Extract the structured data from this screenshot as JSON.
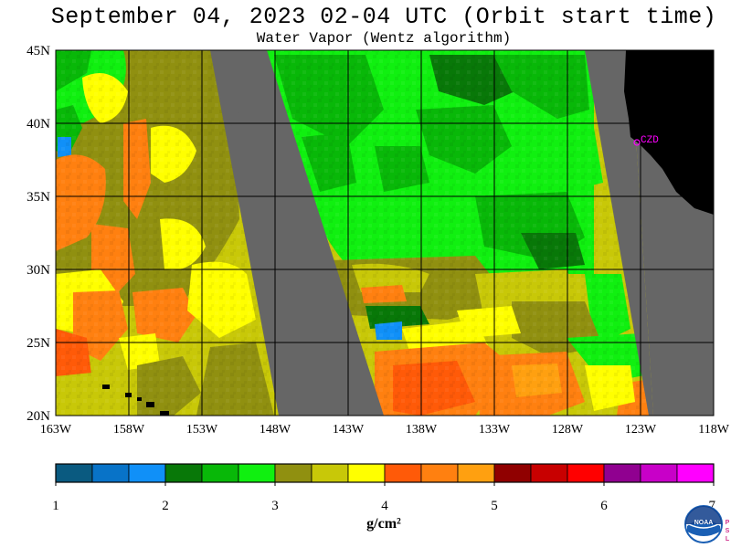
{
  "header": {
    "title": "September 04, 2023  02-04 UTC  (Orbit start time)",
    "subtitle": "Water Vapor (Wentz algorithm)"
  },
  "map": {
    "lat_labels": [
      "45N",
      "40N",
      "35N",
      "30N",
      "25N",
      "20N"
    ],
    "lat_values": [
      45,
      40,
      35,
      30,
      25,
      20
    ],
    "lon_labels": [
      "163W",
      "158W",
      "153W",
      "148W",
      "143W",
      "138W",
      "133W",
      "128W",
      "123W",
      "118W"
    ],
    "lon_values": [
      -163,
      -158,
      -153,
      -148,
      -143,
      -138,
      -133,
      -128,
      -123,
      -118
    ],
    "station_label": "CZD",
    "colors": {
      "gap": "#666666",
      "land": "#000000",
      "station": "#ff00ff",
      "grid": "#000000"
    }
  },
  "colorbar": {
    "unit": "g/cm²",
    "ticks": [
      "1",
      "2",
      "3",
      "4",
      "5",
      "6",
      "7"
    ],
    "colors": [
      "#0a5a80",
      "#0873c8",
      "#1090f8",
      "#087808",
      "#08b808",
      "#10f010",
      "#909010",
      "#c8c808",
      "#ffff00",
      "#ff5a08",
      "#ff8010",
      "#ffa010",
      "#900000",
      "#c80000",
      "#ff0000",
      "#900090",
      "#c800c8",
      "#ff00ff"
    ]
  },
  "logo": {
    "text": "NOAA",
    "side_letters": [
      "P",
      "S",
      "L"
    ]
  }
}
